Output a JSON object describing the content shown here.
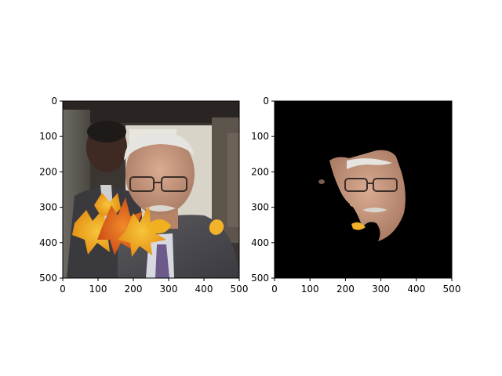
{
  "panels": [
    {
      "id": "left",
      "content": "photo-with-leaf-overlay",
      "x_ticks": [
        "0",
        "100",
        "200",
        "300",
        "400",
        "500"
      ],
      "y_ticks": [
        "0",
        "100",
        "200",
        "300",
        "400",
        "500"
      ]
    },
    {
      "id": "right",
      "content": "segmented-face-mask",
      "x_ticks": [
        "0",
        "100",
        "200",
        "300",
        "400",
        "500"
      ],
      "y_ticks": [
        "0",
        "100",
        "200",
        "300",
        "400",
        "500"
      ]
    }
  ]
}
